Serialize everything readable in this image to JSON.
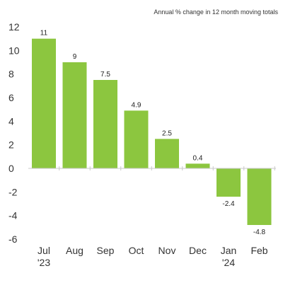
{
  "chart_data": {
    "type": "bar",
    "title": "",
    "subtitle": "Annual % change in 12 month moving totals",
    "xlabel": "",
    "ylabel": "",
    "categories": [
      [
        "Jul",
        "'23"
      ],
      [
        "Aug"
      ],
      [
        "Sep"
      ],
      [
        "Oct"
      ],
      [
        "Nov"
      ],
      [
        "Dec"
      ],
      [
        "Jan",
        "'24"
      ],
      [
        "Feb"
      ]
    ],
    "values": [
      11,
      9,
      7.5,
      4.9,
      2.5,
      0.4,
      -2.4,
      -4.8
    ],
    "value_labels": [
      "11",
      "9",
      "7.5",
      "4.9",
      "2.5",
      "0.4",
      "-2.4",
      "-4.8"
    ],
    "ylim": [
      -6,
      12
    ],
    "yticks": [
      -6,
      -4,
      -2,
      0,
      2,
      4,
      6,
      8,
      10,
      12
    ],
    "grid": false,
    "legend": "none",
    "colors": {
      "bar": "#8cc63f",
      "axis": "#c8c8c8"
    }
  }
}
